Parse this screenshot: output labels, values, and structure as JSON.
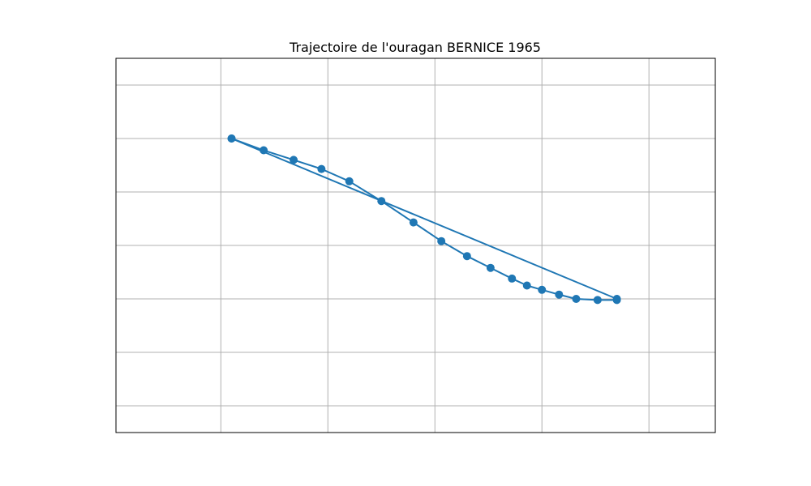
{
  "chart_data": {
    "type": "line",
    "title": "Trajectoire de l'ouragan BERNICE 1965",
    "xlabel": "",
    "ylabel": "",
    "xlim": [
      -4.9,
      23.1
    ],
    "ylim": [
      -3.0,
      4.0
    ],
    "grid": true,
    "x_gridlines": [
      0,
      5,
      10,
      15,
      20
    ],
    "y_gridlines": [
      -2.5,
      -1.5,
      -0.5,
      0.5,
      1.5,
      2.5,
      3.5
    ],
    "series": [
      {
        "x": [
          0.5,
          2.0,
          3.4,
          4.7,
          6.0,
          7.5,
          9.0,
          10.3,
          11.5,
          12.6,
          13.6,
          14.3,
          15.0,
          15.8,
          16.6,
          17.6,
          18.5,
          18.5,
          0.5
        ],
        "y": [
          2.5,
          2.28,
          2.1,
          1.93,
          1.7,
          1.33,
          0.93,
          0.58,
          0.3,
          0.08,
          -0.12,
          -0.25,
          -0.33,
          -0.42,
          -0.5,
          -0.52,
          -0.52,
          -0.5,
          2.5
        ],
        "color": "#1f77b4",
        "marker": "circle"
      }
    ]
  },
  "colors": {
    "line": "#1f77b4",
    "grid": "#b0b0b0",
    "axes": "#000000"
  }
}
